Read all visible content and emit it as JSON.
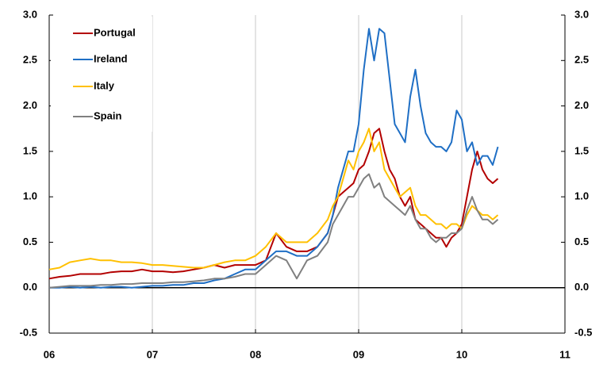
{
  "chart_data": {
    "type": "line",
    "x": [
      2006.0,
      2006.1,
      2006.2,
      2006.3,
      2006.4,
      2006.5,
      2006.6,
      2006.7,
      2006.8,
      2006.9,
      2007.0,
      2007.1,
      2007.2,
      2007.3,
      2007.4,
      2007.5,
      2007.6,
      2007.7,
      2007.8,
      2007.9,
      2008.0,
      2008.1,
      2008.2,
      2008.3,
      2008.4,
      2008.5,
      2008.6,
      2008.7,
      2008.75,
      2008.8,
      2008.85,
      2008.9,
      2008.95,
      2009.0,
      2009.05,
      2009.1,
      2009.15,
      2009.2,
      2009.25,
      2009.3,
      2009.35,
      2009.4,
      2009.45,
      2009.5,
      2009.55,
      2009.6,
      2009.65,
      2009.7,
      2009.75,
      2009.8,
      2009.85,
      2009.9,
      2009.95,
      2010.0,
      2010.05,
      2010.1,
      2010.15,
      2010.2,
      2010.25,
      2010.3,
      2010.35
    ],
    "series": [
      {
        "name": "Portugal",
        "color": "#b30000",
        "values": [
          0.1,
          0.12,
          0.13,
          0.15,
          0.15,
          0.15,
          0.17,
          0.18,
          0.18,
          0.2,
          0.18,
          0.18,
          0.17,
          0.18,
          0.2,
          0.22,
          0.25,
          0.22,
          0.25,
          0.25,
          0.25,
          0.3,
          0.6,
          0.45,
          0.4,
          0.4,
          0.45,
          0.6,
          0.8,
          1.0,
          1.05,
          1.1,
          1.15,
          1.3,
          1.35,
          1.5,
          1.7,
          1.75,
          1.5,
          1.3,
          1.2,
          1.0,
          0.9,
          1.0,
          0.75,
          0.7,
          0.65,
          0.6,
          0.55,
          0.55,
          0.45,
          0.55,
          0.6,
          0.7,
          1.0,
          1.3,
          1.5,
          1.3,
          1.2,
          1.15,
          1.2
        ]
      },
      {
        "name": "Ireland",
        "color": "#1f6fc5",
        "values": [
          0,
          0,
          0.01,
          0,
          0.01,
          0,
          0.01,
          0.01,
          0,
          0.01,
          0.02,
          0.02,
          0.03,
          0.03,
          0.05,
          0.05,
          0.08,
          0.1,
          0.15,
          0.2,
          0.2,
          0.3,
          0.4,
          0.4,
          0.35,
          0.35,
          0.45,
          0.6,
          0.8,
          1.1,
          1.3,
          1.5,
          1.5,
          1.8,
          2.4,
          2.85,
          2.5,
          2.85,
          2.8,
          2.3,
          1.8,
          1.7,
          1.6,
          2.1,
          2.4,
          2.0,
          1.7,
          1.6,
          1.55,
          1.55,
          1.5,
          1.6,
          1.95,
          1.85,
          1.5,
          1.6,
          1.35,
          1.45,
          1.45,
          1.35,
          1.55
        ]
      },
      {
        "name": "Italy",
        "color": "#ffc000",
        "values": [
          0.2,
          0.22,
          0.28,
          0.3,
          0.32,
          0.3,
          0.3,
          0.28,
          0.28,
          0.27,
          0.25,
          0.25,
          0.24,
          0.23,
          0.22,
          0.22,
          0.25,
          0.28,
          0.3,
          0.3,
          0.35,
          0.45,
          0.6,
          0.5,
          0.5,
          0.5,
          0.6,
          0.75,
          0.9,
          1.0,
          1.2,
          1.4,
          1.3,
          1.5,
          1.6,
          1.75,
          1.5,
          1.6,
          1.3,
          1.2,
          1.1,
          1.0,
          1.05,
          1.1,
          0.9,
          0.8,
          0.8,
          0.75,
          0.7,
          0.7,
          0.65,
          0.7,
          0.7,
          0.65,
          0.8,
          0.9,
          0.85,
          0.8,
          0.8,
          0.75,
          0.8
        ]
      },
      {
        "name": "Spain",
        "color": "#808080",
        "values": [
          0,
          0.01,
          0.02,
          0.02,
          0.02,
          0.03,
          0.03,
          0.04,
          0.04,
          0.05,
          0.05,
          0.05,
          0.06,
          0.06,
          0.07,
          0.08,
          0.1,
          0.1,
          0.12,
          0.15,
          0.15,
          0.25,
          0.35,
          0.3,
          0.1,
          0.3,
          0.35,
          0.5,
          0.7,
          0.8,
          0.9,
          1.0,
          1.0,
          1.1,
          1.2,
          1.25,
          1.1,
          1.15,
          1.0,
          0.95,
          0.9,
          0.85,
          0.8,
          0.9,
          0.75,
          0.65,
          0.65,
          0.55,
          0.5,
          0.55,
          0.55,
          0.6,
          0.6,
          0.65,
          0.85,
          1.0,
          0.85,
          0.75,
          0.75,
          0.7,
          0.75
        ]
      }
    ],
    "xlim": [
      2006,
      2011
    ],
    "xticks": [
      {
        "value": 2006,
        "label": "06"
      },
      {
        "value": 2007,
        "label": "07"
      },
      {
        "value": 2008,
        "label": "08"
      },
      {
        "value": 2009,
        "label": "09"
      },
      {
        "value": 2010,
        "label": "10"
      },
      {
        "value": 2011,
        "label": "11"
      }
    ],
    "ylim": [
      -0.5,
      3.0
    ],
    "yticks": [
      {
        "value": -0.5,
        "label": "-0.5"
      },
      {
        "value": 0,
        "label": "0.0"
      },
      {
        "value": 0.5,
        "label": "0.5"
      },
      {
        "value": 1,
        "label": "1.0"
      },
      {
        "value": 1.5,
        "label": "1.5"
      },
      {
        "value": 2,
        "label": "2.0"
      },
      {
        "value": 2.5,
        "label": "2.5"
      },
      {
        "value": 3,
        "label": "3.0"
      }
    ],
    "y2lim": [
      -0.5,
      3.0
    ],
    "y2ticks": [
      {
        "value": -0.5,
        "label": "-0.5"
      },
      {
        "value": 0,
        "label": "0.0"
      },
      {
        "value": 0.5,
        "label": "0.5"
      },
      {
        "value": 1,
        "label": "1.0"
      },
      {
        "value": 1.5,
        "label": "1.5"
      },
      {
        "value": 2,
        "label": "2.0"
      },
      {
        "value": 2.5,
        "label": "2.5"
      },
      {
        "value": 3,
        "label": "3.0"
      }
    ],
    "grid": true,
    "legend": "upper left"
  }
}
